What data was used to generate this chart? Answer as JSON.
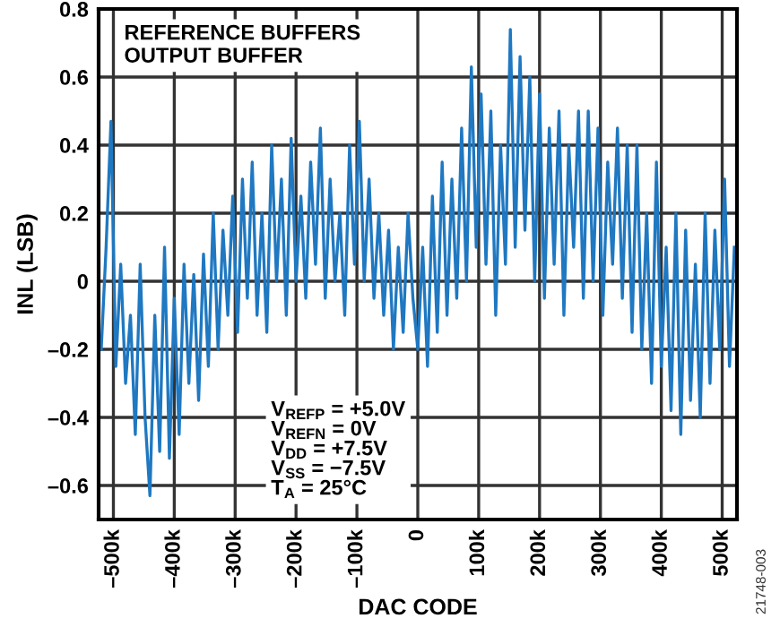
{
  "chart_data": {
    "type": "line",
    "xlabel": "DAC CODE",
    "ylabel": "INL (LSB)",
    "annotations": [
      "REFERENCE BUFFERS",
      "OUTPUT BUFFER",
      "V$_{REFP}$ = +5.0V",
      "V$_{REFN}$ = 0V",
      "V$_{DD}$ = +7.5V",
      "V$_{SS}$ = −7.5V",
      "T$_{A}$ = 25°C",
      "21748-003"
    ],
    "series": [
      {
        "color": "#1f78c1",
        "x": [
          -520000,
          -512000,
          -504000,
          -496000,
          -488000,
          -480000,
          -472000,
          -464000,
          -456000,
          -448000,
          -440000,
          -432000,
          -424000,
          -416000,
          -408000,
          -400000,
          -392000,
          -384000,
          -376000,
          -368000,
          -360000,
          -352000,
          -344000,
          -336000,
          -328000,
          -320000,
          -312000,
          -304000,
          -296000,
          -288000,
          -280000,
          -272000,
          -264000,
          -256000,
          -248000,
          -240000,
          -232000,
          -224000,
          -216000,
          -208000,
          -200000,
          -192000,
          -184000,
          -176000,
          -168000,
          -160000,
          -152000,
          -144000,
          -136000,
          -128000,
          -120000,
          -112000,
          -104000,
          -96000,
          -88000,
          -80000,
          -72000,
          -64000,
          -56000,
          -48000,
          -40000,
          -32000,
          -24000,
          -16000,
          -8000,
          0,
          8000,
          16000,
          24000,
          32000,
          40000,
          48000,
          56000,
          64000,
          72000,
          80000,
          88000,
          96000,
          104000,
          112000,
          120000,
          128000,
          136000,
          144000,
          152000,
          160000,
          168000,
          176000,
          184000,
          192000,
          200000,
          208000,
          216000,
          224000,
          232000,
          240000,
          248000,
          256000,
          264000,
          272000,
          280000,
          288000,
          296000,
          304000,
          312000,
          320000,
          328000,
          336000,
          344000,
          352000,
          360000,
          368000,
          376000,
          384000,
          392000,
          400000,
          408000,
          416000,
          424000,
          432000,
          440000,
          448000,
          456000,
          464000,
          472000,
          480000,
          488000,
          496000,
          504000,
          512000,
          520000
        ],
        "values": [
          -0.2,
          0.1,
          0.47,
          -0.25,
          0.05,
          -0.3,
          -0.1,
          -0.45,
          0.05,
          -0.4,
          -0.63,
          -0.1,
          -0.5,
          0.1,
          -0.52,
          -0.05,
          -0.45,
          0.05,
          -0.3,
          0.02,
          -0.35,
          0.08,
          -0.25,
          0.2,
          -0.2,
          0.15,
          -0.1,
          0.25,
          -0.15,
          0.3,
          -0.05,
          0.35,
          -0.1,
          0.2,
          -0.15,
          0.4,
          0.0,
          0.3,
          -0.1,
          0.42,
          0.0,
          0.25,
          -0.05,
          0.35,
          0.05,
          0.45,
          -0.05,
          0.3,
          0.0,
          0.2,
          -0.1,
          0.4,
          0.05,
          0.47,
          0.0,
          0.3,
          -0.05,
          0.2,
          -0.1,
          0.15,
          -0.2,
          0.1,
          -0.15,
          0.2,
          -0.05,
          -0.2,
          0.1,
          -0.25,
          0.25,
          -0.15,
          0.35,
          -0.1,
          0.3,
          -0.05,
          0.45,
          0.0,
          0.63,
          0.1,
          0.55,
          0.05,
          0.5,
          -0.1,
          0.4,
          0.05,
          0.74,
          0.1,
          0.66,
          0.15,
          0.6,
          0.0,
          0.55,
          -0.05,
          0.45,
          0.05,
          0.5,
          -0.1,
          0.4,
          0.1,
          0.5,
          -0.05,
          0.5,
          0.0,
          0.45,
          -0.1,
          0.35,
          0.05,
          0.45,
          -0.05,
          0.4,
          -0.15,
          0.4,
          -0.2,
          0.2,
          -0.3,
          0.35,
          -0.25,
          0.1,
          -0.38,
          0.2,
          -0.45,
          0.15,
          -0.35,
          0.05,
          -0.4,
          0.2,
          -0.3,
          0.15,
          -0.2,
          0.3,
          -0.25,
          0.1
        ]
      }
    ],
    "xlim": [
      -524288,
      524287
    ],
    "xticks": [
      {
        "value": -500000,
        "label": "–500k"
      },
      {
        "value": -400000,
        "label": "–400k"
      },
      {
        "value": -300000,
        "label": "–300k"
      },
      {
        "value": -200000,
        "label": "–200k"
      },
      {
        "value": -100000,
        "label": "–100k"
      },
      0,
      {
        "value": 100000,
        "label": "100k"
      },
      {
        "value": 200000,
        "label": "200k"
      },
      {
        "value": 300000,
        "label": "300k"
      },
      {
        "value": 400000,
        "label": "400k"
      },
      {
        "value": 500000,
        "label": "500k"
      }
    ],
    "ylim": [
      -0.7,
      0.8
    ],
    "yticks": [
      {
        "value": -0.6,
        "label": "–0.6"
      },
      {
        "value": -0.4,
        "label": "–0.4"
      },
      {
        "value": -0.2,
        "label": "–0.2"
      },
      0,
      0.2,
      0.4,
      0.6,
      0.8
    ],
    "grid": true,
    "legend": false
  }
}
